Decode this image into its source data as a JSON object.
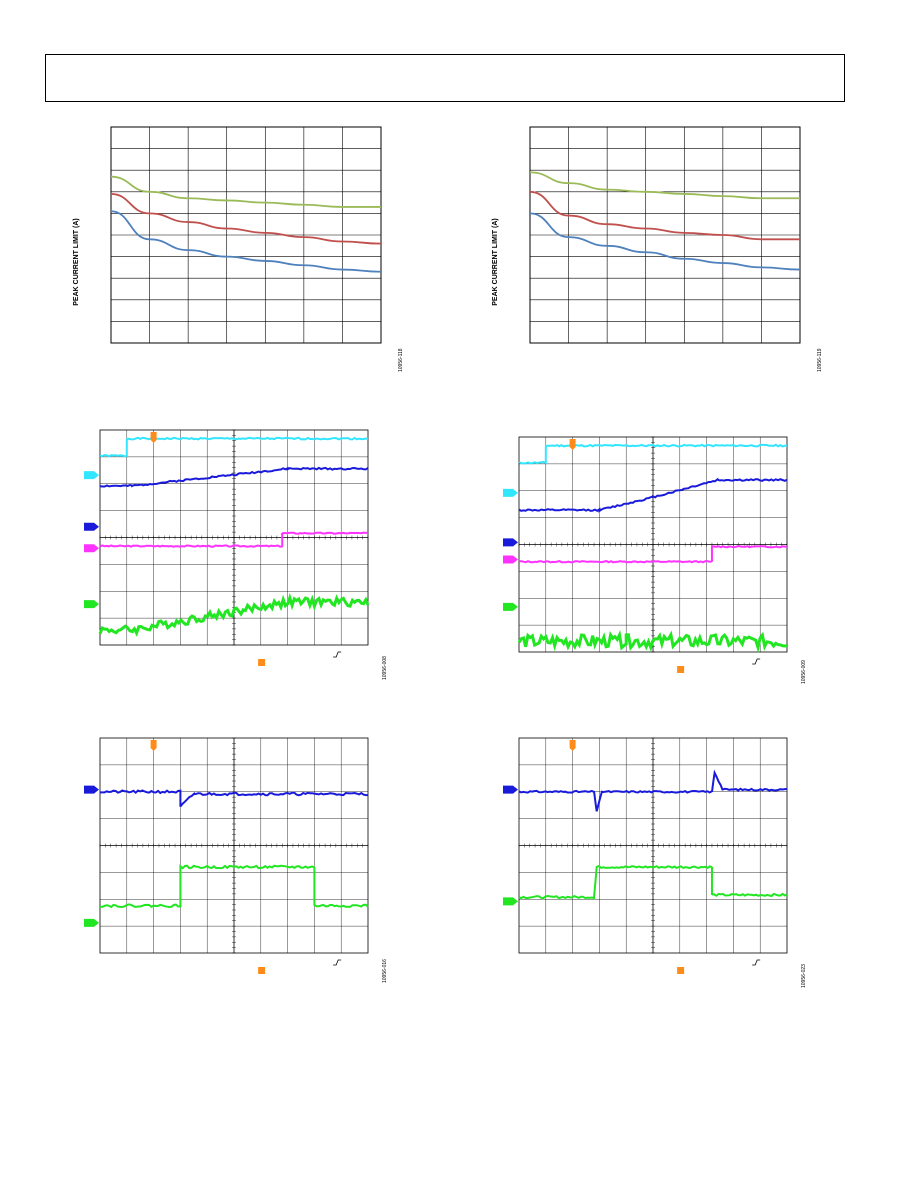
{
  "header": {
    "title": ""
  },
  "figures": [
    {
      "id": "fig-118",
      "figure_code": "10956-118",
      "ylabel": "PEAK CURRENT LIMIT (A)"
    },
    {
      "id": "fig-119",
      "figure_code": "10956-119",
      "ylabel": "PEAK CURRENT LIMIT (A)"
    },
    {
      "id": "fig-008",
      "figure_code": "10956-008"
    },
    {
      "id": "fig-009",
      "figure_code": "10956-009"
    },
    {
      "id": "fig-016",
      "figure_code": "10956-016"
    },
    {
      "id": "fig-023",
      "figure_code": "10956-023"
    }
  ],
  "chart_data": [
    {
      "type": "line",
      "ylabel": "PEAK CURRENT LIMIT (A)",
      "xlabel": "",
      "x": [
        0,
        1,
        2,
        3,
        4,
        5,
        6,
        7
      ],
      "grid": true,
      "series": [
        {
          "color": "#9bbb59",
          "values": [
            7.7,
            7.0,
            6.7,
            6.6,
            6.5,
            6.4,
            6.3,
            6.3
          ]
        },
        {
          "color": "#c0504d",
          "values": [
            6.9,
            6.0,
            5.6,
            5.3,
            5.1,
            4.9,
            4.7,
            4.6
          ]
        },
        {
          "color": "#4f81bd",
          "values": [
            6.1,
            4.8,
            4.3,
            4.0,
            3.8,
            3.6,
            3.4,
            3.3
          ]
        }
      ],
      "ylim": [
        0,
        10
      ],
      "xlim": [
        0,
        7
      ]
    },
    {
      "type": "line",
      "ylabel": "PEAK CURRENT LIMIT (A)",
      "xlabel": "",
      "x": [
        0,
        1,
        2,
        3,
        4,
        5,
        6,
        7
      ],
      "grid": true,
      "series": [
        {
          "color": "#9bbb59",
          "values": [
            7.9,
            7.4,
            7.1,
            7.0,
            6.9,
            6.8,
            6.7,
            6.7
          ]
        },
        {
          "color": "#c0504d",
          "values": [
            7.0,
            5.9,
            5.5,
            5.3,
            5.1,
            5.0,
            4.8,
            4.8
          ]
        },
        {
          "color": "#4f81bd",
          "values": [
            6.0,
            4.9,
            4.5,
            4.2,
            3.9,
            3.7,
            3.5,
            3.4
          ]
        }
      ],
      "ylim": [
        0,
        10
      ],
      "xlim": [
        0,
        7
      ]
    }
  ],
  "scopes": [
    {
      "id": "fig-008",
      "traces": [
        {
          "color": "#33e6ff",
          "points": [
            [
              0,
              0.88
            ],
            [
              0.1,
              0.88
            ],
            [
              0.1,
              0.96
            ],
            [
              1,
              0.96
            ]
          ],
          "noise": 0.004
        },
        {
          "color": "#1a1adb",
          "points": [
            [
              0,
              0.74
            ],
            [
              0.12,
              0.74
            ],
            [
              0.7,
              0.82
            ],
            [
              1,
              0.82
            ]
          ],
          "noise": 0.004
        },
        {
          "color": "#ff33ff",
          "points": [
            [
              0,
              0.46
            ],
            [
              0.68,
              0.46
            ],
            [
              0.68,
              0.52
            ],
            [
              1,
              0.52
            ]
          ],
          "noise": 0.003
        },
        {
          "color": "#22e622",
          "points": [
            [
              0,
              0.07
            ],
            [
              0.12,
              0.07
            ],
            [
              0.7,
              0.2
            ],
            [
              1,
              0.2
            ]
          ],
          "noise": 0.02
        }
      ],
      "markers": [
        {
          "color": "#33e6ff",
          "y": 0.79
        },
        {
          "color": "#1a1adb",
          "y": 0.55
        },
        {
          "color": "#ff33ff",
          "y": 0.45
        },
        {
          "color": "#22e622",
          "y": 0.19
        }
      ]
    },
    {
      "id": "fig-009",
      "traces": [
        {
          "color": "#33e6ff",
          "points": [
            [
              0,
              0.88
            ],
            [
              0.1,
              0.88
            ],
            [
              0.1,
              0.96
            ],
            [
              1,
              0.96
            ]
          ],
          "noise": 0.004
        },
        {
          "color": "#1a1adb",
          "points": [
            [
              0,
              0.66
            ],
            [
              0.3,
              0.66
            ],
            [
              0.5,
              0.72
            ],
            [
              0.74,
              0.8
            ],
            [
              1,
              0.8
            ]
          ],
          "noise": 0.004
        },
        {
          "color": "#ff33ff",
          "points": [
            [
              0,
              0.42
            ],
            [
              0.72,
              0.42
            ],
            [
              0.72,
              0.49
            ],
            [
              1,
              0.49
            ]
          ],
          "noise": 0.003
        },
        {
          "color": "#22e622",
          "points": [
            [
              0,
              0.05
            ],
            [
              0.4,
              0.05
            ],
            [
              1,
              0.05
            ]
          ],
          "noise": 0.03
        }
      ],
      "markers": [
        {
          "color": "#33e6ff",
          "y": 0.74
        },
        {
          "color": "#1a1adb",
          "y": 0.51
        },
        {
          "color": "#ff33ff",
          "y": 0.43
        },
        {
          "color": "#22e622",
          "y": 0.21
        }
      ]
    },
    {
      "id": "fig-016",
      "traces": [
        {
          "color": "#1a1adb",
          "points": [
            [
              0,
              0.75
            ],
            [
              0.3,
              0.75
            ],
            [
              0.3,
              0.68
            ],
            [
              0.35,
              0.74
            ],
            [
              1,
              0.74
            ]
          ],
          "noise": 0.006
        },
        {
          "color": "#22e622",
          "points": [
            [
              0,
              0.22
            ],
            [
              0.3,
              0.22
            ],
            [
              0.3,
              0.4
            ],
            [
              0.8,
              0.4
            ],
            [
              0.8,
              0.22
            ],
            [
              1,
              0.22
            ]
          ],
          "noise": 0.006
        }
      ],
      "markers": [
        {
          "color": "#1a1adb",
          "y": 0.76
        },
        {
          "color": "#22e622",
          "y": 0.14
        }
      ]
    },
    {
      "id": "fig-023",
      "traces": [
        {
          "color": "#1a1adb",
          "points": [
            [
              0,
              0.75
            ],
            [
              0.28,
              0.75
            ],
            [
              0.29,
              0.66
            ],
            [
              0.31,
              0.75
            ],
            [
              0.72,
              0.75
            ],
            [
              0.73,
              0.84
            ],
            [
              0.76,
              0.76
            ],
            [
              1,
              0.76
            ]
          ],
          "noise": 0.004
        },
        {
          "color": "#22e622",
          "points": [
            [
              0,
              0.26
            ],
            [
              0.28,
              0.26
            ],
            [
              0.29,
              0.4
            ],
            [
              0.72,
              0.4
            ],
            [
              0.72,
              0.27
            ],
            [
              1,
              0.27
            ]
          ],
          "noise": 0.005
        }
      ],
      "markers": [
        {
          "color": "#1a1adb",
          "y": 0.76
        },
        {
          "color": "#22e622",
          "y": 0.24
        }
      ]
    }
  ]
}
